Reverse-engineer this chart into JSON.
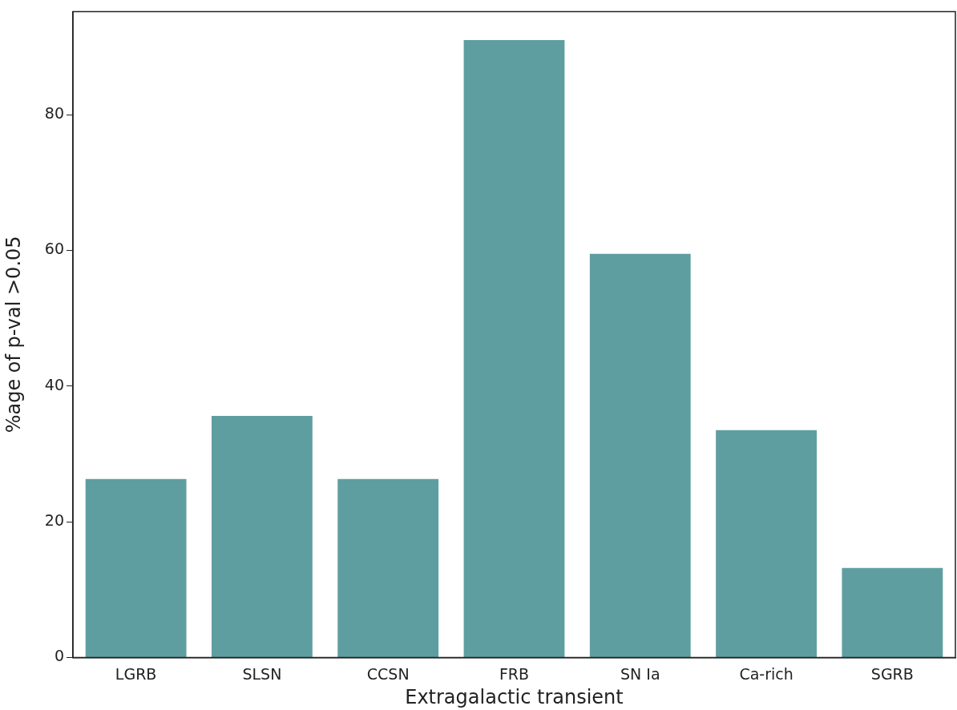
{
  "chart_data": {
    "type": "bar",
    "xlabel": "Extragalactic transient",
    "ylabel": "%age of p-val >0.05",
    "categories": [
      "LGRB",
      "SLSN",
      "CCSN",
      "FRB",
      "SN Ia",
      "Ca-rich",
      "SGRB"
    ],
    "values": [
      26.3,
      35.6,
      26.3,
      91.0,
      59.5,
      33.5,
      13.2
    ],
    "color": "#5f9ea0",
    "ylim": [
      0,
      95.2
    ],
    "yticks": [
      0,
      20,
      40,
      60,
      80
    ],
    "grid": false,
    "legend": false
  }
}
